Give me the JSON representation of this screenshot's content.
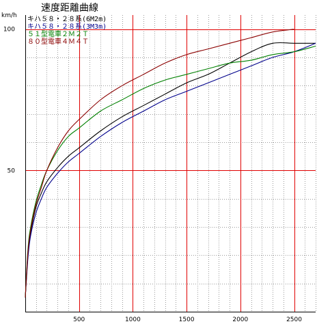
{
  "chart_data": {
    "type": "line",
    "title": "速度距離曲線",
    "ylabel": "km/h",
    "xlabel": "",
    "xlim": [
      0,
      2700
    ],
    "ylim": [
      0,
      105
    ],
    "x_ticks": [
      500,
      1000,
      1500,
      2000,
      2500
    ],
    "y_ticks": [
      50,
      100
    ],
    "x_minor_step": 100,
    "y_minor_step": 10,
    "x_major_step": 500,
    "y_major_step": 50,
    "grid": true,
    "legend_position": "top-left",
    "series": [
      {
        "name": "キハ５８・２８系(6M2m)",
        "color": "#000000",
        "x": [
          0,
          25,
          50,
          100,
          150,
          200,
          300,
          400,
          500,
          700,
          900,
          1100,
          1300,
          1500,
          1700,
          1900,
          2100,
          2300,
          2500,
          2700
        ],
        "y": [
          5,
          20,
          28,
          37,
          42,
          46,
          51,
          55,
          58,
          64,
          69,
          73,
          77,
          81,
          84,
          88,
          92,
          95,
          95,
          95
        ]
      },
      {
        "name": "キハ５８・２８系(3M3m)",
        "color": "#00008b",
        "x": [
          0,
          25,
          50,
          100,
          150,
          200,
          300,
          400,
          500,
          700,
          900,
          1100,
          1300,
          1500,
          1700,
          1900,
          2100,
          2300,
          2500,
          2700
        ],
        "y": [
          5,
          19,
          27,
          35,
          40,
          44,
          49,
          53,
          56,
          62,
          67,
          71,
          75,
          78,
          81,
          84,
          87,
          90,
          92,
          95
        ]
      },
      {
        "name": "５１型電車２Ｍ２Ｔ",
        "color": "#008000",
        "x": [
          0,
          25,
          50,
          100,
          150,
          200,
          300,
          400,
          500,
          700,
          900,
          1100,
          1300,
          1500,
          1700,
          1900,
          2100,
          2300,
          2500,
          2700
        ],
        "y": [
          5,
          22,
          30,
          39,
          45,
          50,
          57,
          62,
          65,
          71,
          75,
          79,
          82,
          84,
          86,
          88,
          89,
          91,
          92,
          94
        ]
      },
      {
        "name": "８０型電車４Ｍ４Ｔ",
        "color": "#8b0000",
        "x": [
          0,
          25,
          50,
          100,
          150,
          200,
          300,
          400,
          500,
          700,
          900,
          1100,
          1300,
          1500,
          1700,
          1900,
          2100,
          2300,
          2500
        ],
        "y": [
          5,
          21,
          29,
          38,
          44,
          50,
          58,
          64,
          68,
          75,
          80,
          84,
          88,
          91,
          93,
          95,
          97,
          99,
          100
        ]
      }
    ]
  }
}
